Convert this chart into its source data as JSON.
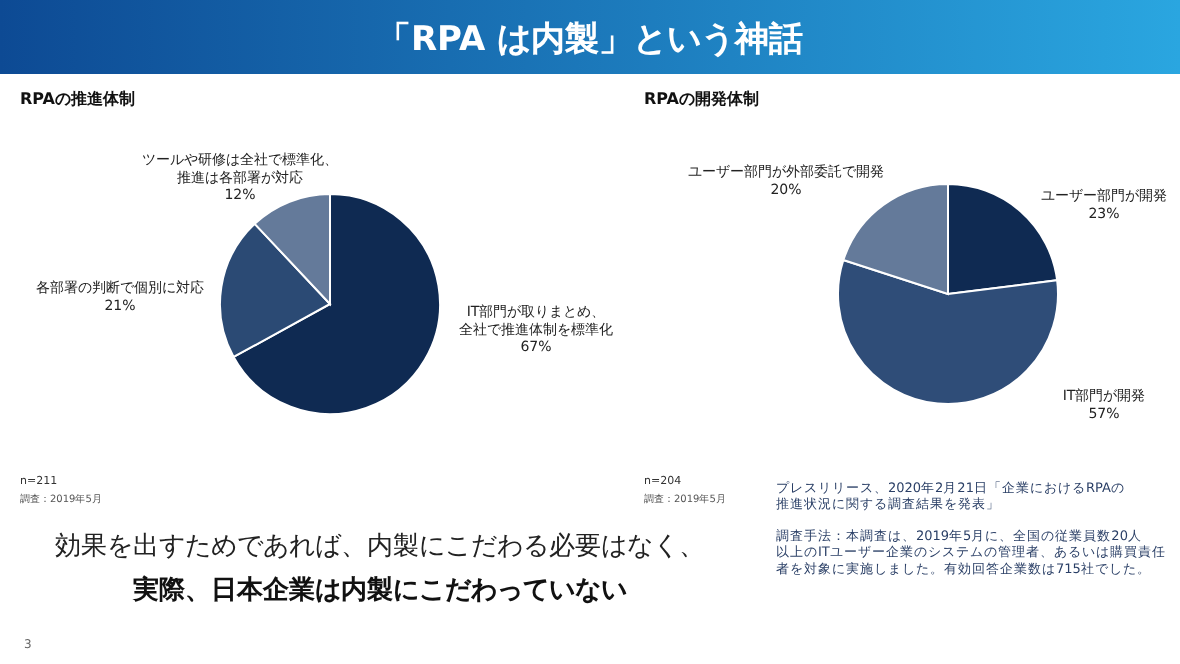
{
  "chart_data": [
    {
      "type": "other",
      "title": "「RPA は内製」という神話",
      "annotations": [
        "効果を出すためであれば、内製にこだわる必要はなく、",
        "実際、日本企業は内製にこだわっていない",
        "プレスリリース、2020年2月21日「企業におけるRPAの推進状況に関する調査結果を発表」",
        "調査手法：本調査は、2019年5月に、全国の従業員数20人以上のITユーザー企業のシステムの管理者、あるいは購買責任者を対象に実施しました。有効回答企業数は715社でした。",
        "3"
      ]
    },
    {
      "type": "pie",
      "title": "RPAの推進体制",
      "categories": [
        "IT部門が取りまとめ、全社で推進体制を標準化",
        "各部署の判断で個別に対応",
        "ツールや研修は全社で標準化、推進は各部署が対応"
      ],
      "values": [
        67,
        21,
        12
      ],
      "value_labels": [
        "67%",
        "21%",
        "12%"
      ],
      "colors": [
        "#0f2a52",
        "#2b4a74",
        "#647a9a"
      ],
      "annotations": [
        "n=211",
        "調査：2019年5月"
      ]
    },
    {
      "type": "pie",
      "title": "RPAの開発体制",
      "categories": [
        "ユーザー部門が開発",
        "IT部門が開発",
        "ユーザー部門が外部委託で開発"
      ],
      "values": [
        23,
        57,
        20
      ],
      "value_labels": [
        "23%",
        "57%",
        "20%"
      ],
      "colors": [
        "#0f2a52",
        "#2f4d78",
        "#647a9a"
      ],
      "annotations": [
        "n=204",
        "調査：2019年5月"
      ]
    }
  ]
}
